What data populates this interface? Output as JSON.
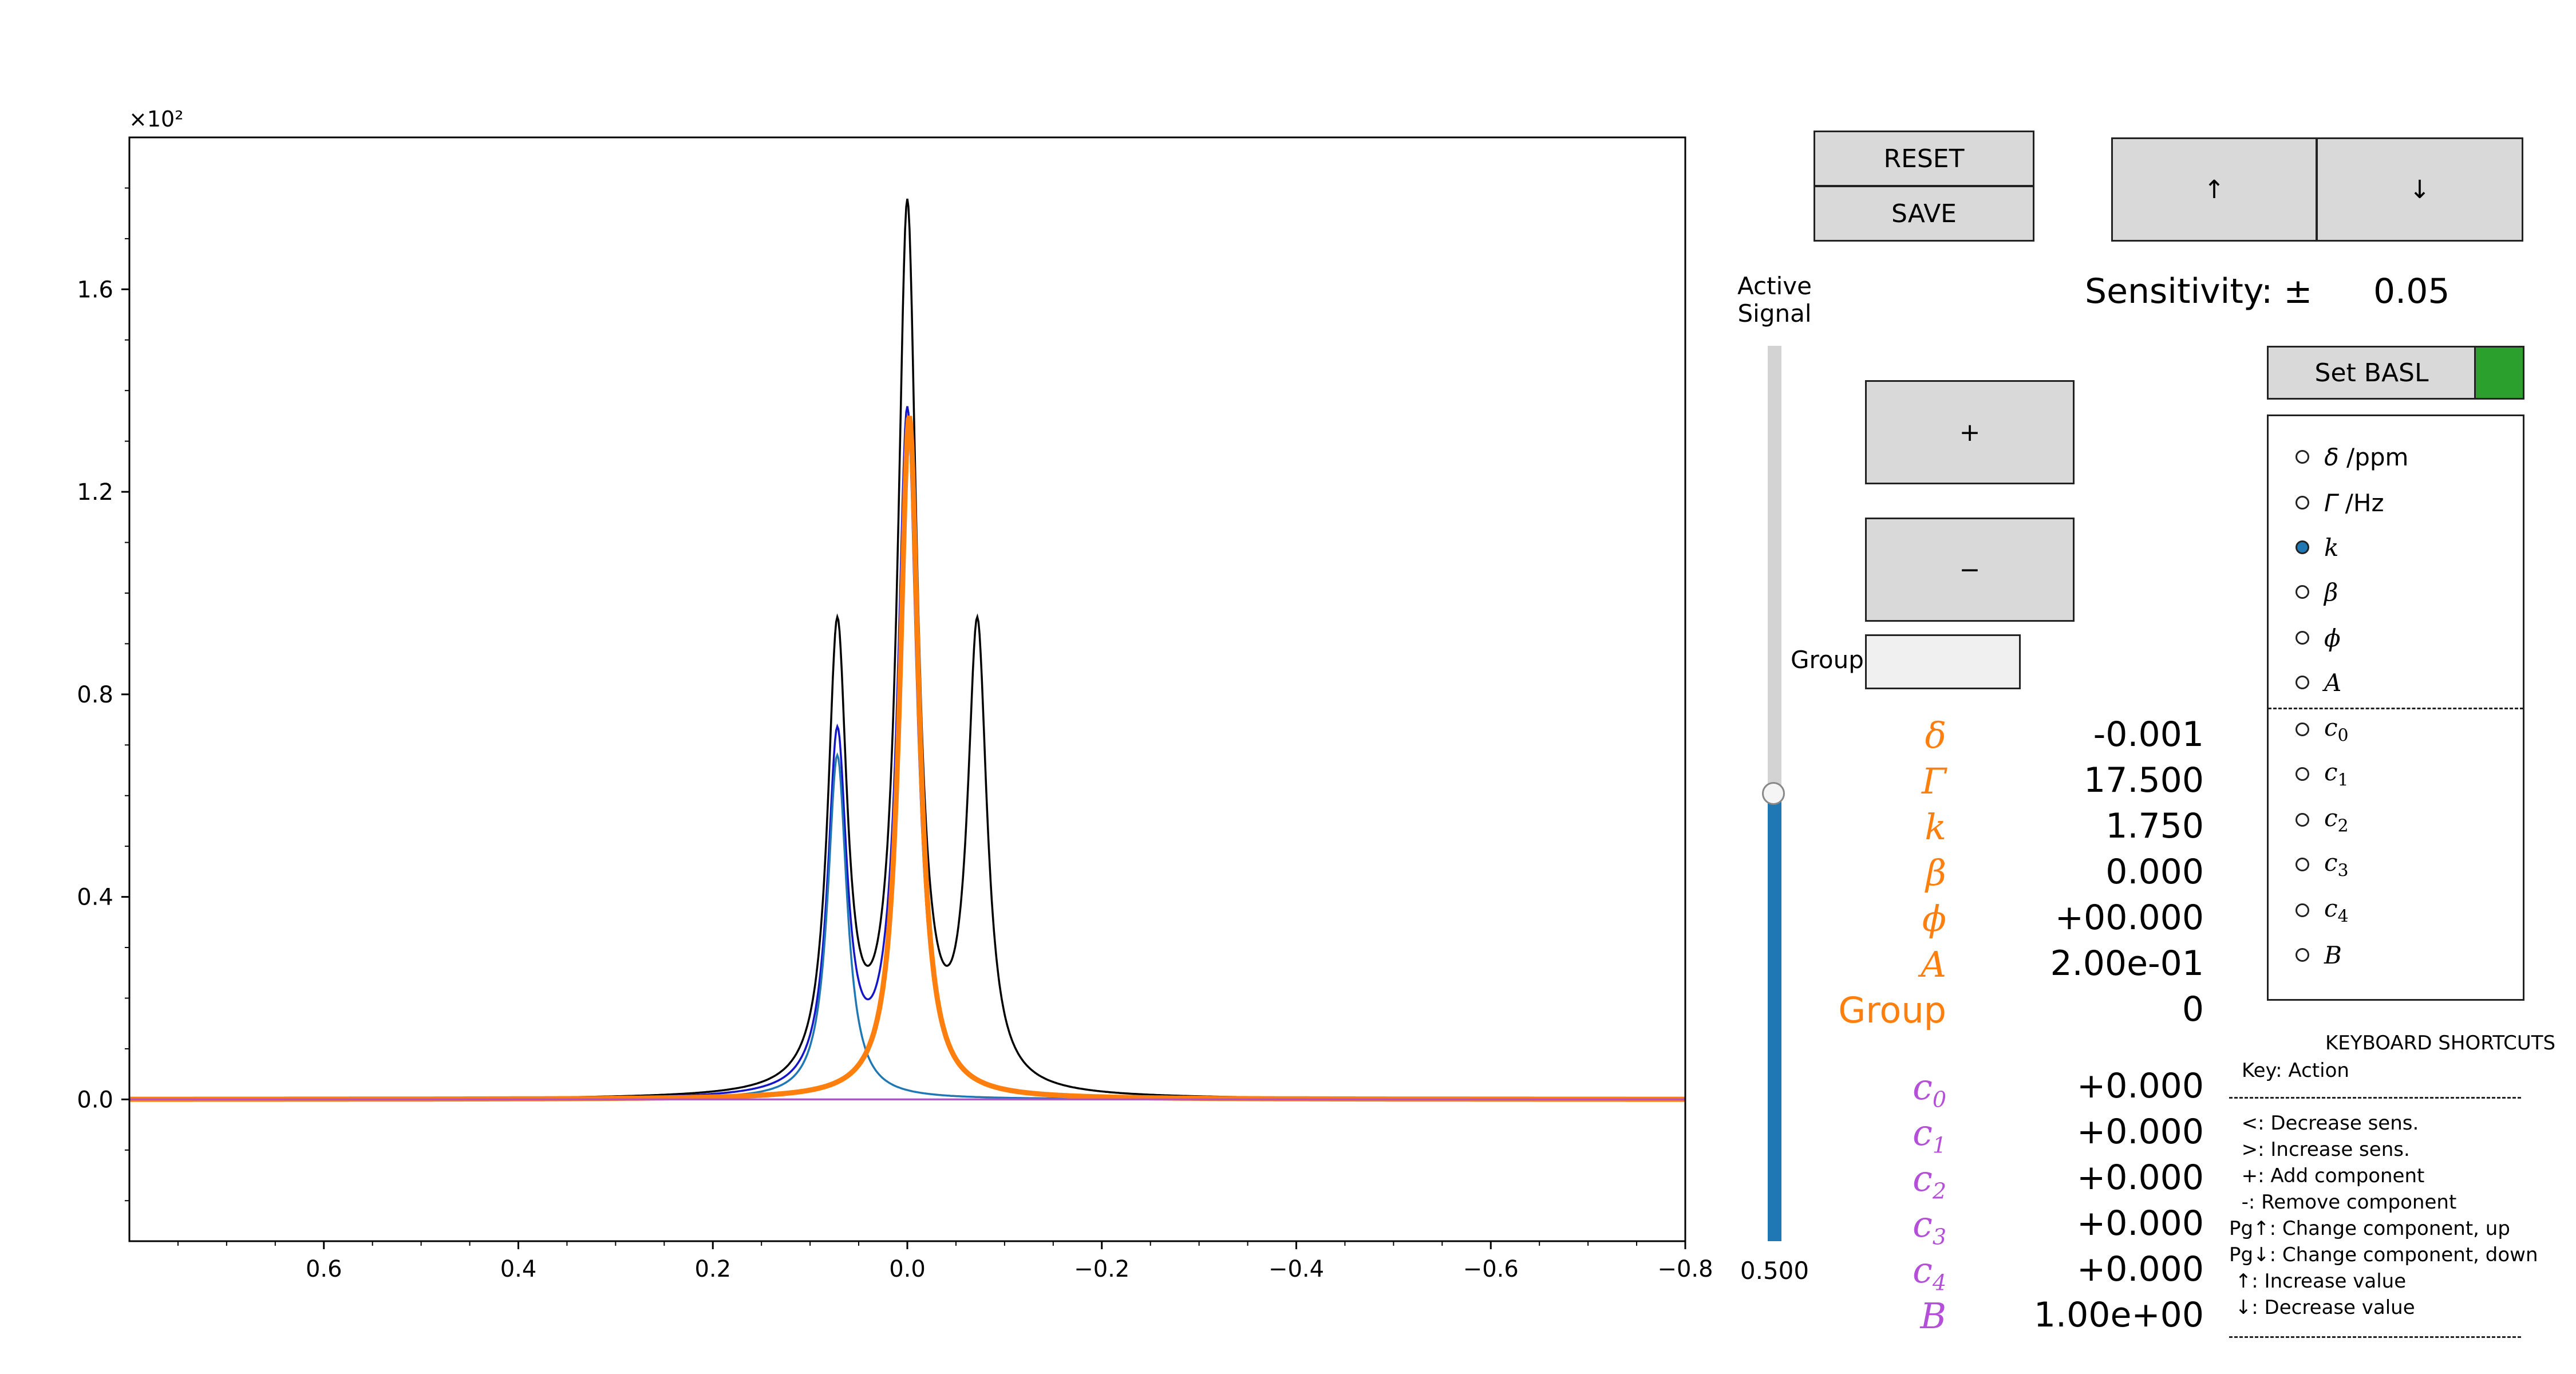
{
  "plot": {
    "multiplier_label": "×10²",
    "x_ticks": [
      "0.6",
      "0.4",
      "0.2",
      "0.0",
      "−0.2",
      "−0.4",
      "−0.6",
      "−0.8"
    ],
    "y_ticks": [
      "1.6",
      "1.2",
      "0.8",
      "0.4",
      "0.0"
    ]
  },
  "chart_data": {
    "type": "line",
    "xlim": [
      0.8,
      -0.8
    ],
    "ylim": [
      -0.28,
      1.9
    ],
    "x_unit_scale": "×10²",
    "series": [
      {
        "color": "#000000",
        "peaks": [
          [
            0.072,
            0.9,
            0.012
          ],
          [
            0.0,
            1.73,
            0.012
          ],
          [
            -0.072,
            0.9,
            0.012
          ]
        ]
      },
      {
        "color": "#1515c8",
        "peaks": [
          [
            0.072,
            0.7,
            0.012
          ],
          [
            0.0,
            1.35,
            0.012
          ]
        ]
      },
      {
        "color": "#1f77b4",
        "peaks": [
          [
            0.072,
            0.68,
            0.012
          ]
        ]
      },
      {
        "color": "#ff7f0e",
        "peaks": [
          [
            -0.002,
            1.35,
            0.012
          ]
        ]
      },
      {
        "color": "#b44fd8",
        "peaks": []
      }
    ]
  },
  "controls": {
    "reset_label": "RESET",
    "save_label": "SAVE",
    "up_label": "↑",
    "down_label": "↓",
    "sensitivity_label": "Sensitivity: ±",
    "sensitivity_value": "0.05",
    "set_basl_label": "Set BASL",
    "plus_label": "+",
    "minus_label": "−",
    "group_label": "Group",
    "group_value": "",
    "active_signal_line1": "Active",
    "active_signal_line2": "Signal",
    "slider_value": "0.500",
    "slider_fraction": 0.5
  },
  "params": [
    {
      "sym": "δ",
      "val": "-0.001",
      "color": "#ff7f0e"
    },
    {
      "sym": "Γ",
      "val": "17.500",
      "color": "#ff7f0e"
    },
    {
      "sym": "k",
      "val": "1.750",
      "color": "#ff7f0e"
    },
    {
      "sym": "β",
      "val": "0.000",
      "color": "#ff7f0e"
    },
    {
      "sym": "ϕ",
      "val": "+00.000",
      "color": "#ff7f0e"
    },
    {
      "sym": "A",
      "val": "2.00e-01",
      "color": "#ff7f0e"
    },
    {
      "sym": "Group",
      "val": "0",
      "color": "#ff7f0e"
    }
  ],
  "baseline_params": [
    {
      "sym": "c0",
      "val": "+0.000"
    },
    {
      "sym": "c1",
      "val": "+0.000"
    },
    {
      "sym": "c2",
      "val": "+0.000"
    },
    {
      "sym": "c3",
      "val": "+0.000"
    },
    {
      "sym": "c4",
      "val": "+0.000"
    },
    {
      "sym": "B",
      "val": "1.00e+00"
    }
  ],
  "radio": {
    "options": [
      "δ /ppm",
      "Γ /Hz",
      "k",
      "β",
      "ϕ",
      "A",
      "c0",
      "c1",
      "c2",
      "c3",
      "c4",
      "B"
    ],
    "selected_index": 2
  },
  "shortcuts": {
    "title": "KEYBOARD SHORTCUTS",
    "header": "Key: Action",
    "lines": [
      "  <: Decrease sens.",
      "  >: Increase sens.",
      "  +: Add component",
      "  -: Remove component",
      "Pg↑: Change component, up",
      "Pg↓: Change component, down",
      " ↑: Increase value",
      " ↓: Decrease value"
    ]
  },
  "colors": {
    "button_bg": "#d9d9d9",
    "green": "#2ca02c",
    "slider_active": "#1f77b4",
    "slider_track": "#d3d3d3",
    "orange": "#ff7f0e",
    "purple": "#b44fd8"
  }
}
